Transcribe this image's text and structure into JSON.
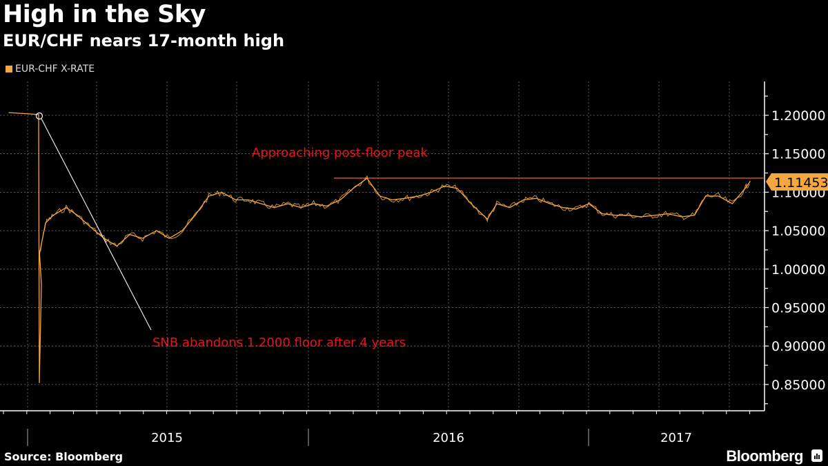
{
  "header": {
    "title": "High in the Sky",
    "subtitle": "EUR/CHF nears 17-month high"
  },
  "legend": {
    "label": "EUR-CHF X-RATE",
    "color": "#f5a742"
  },
  "footer": {
    "source": "Source: Bloomberg",
    "brand": "Bloomberg"
  },
  "annotations": {
    "snb": "SNB abandons 1.2000 floor after 4 years",
    "peak": "Approaching post-floor peak"
  },
  "last_value": "1.11453",
  "chart_data": {
    "type": "line",
    "title": "High in the Sky",
    "subtitle": "EUR/CHF nears 17-month high",
    "xlabel": "",
    "ylabel": "",
    "series": [
      {
        "name": "EUR-CHF X-RATE",
        "color": "#f5a742",
        "x": [
          "2014-12-15",
          "2015-01-14",
          "2015-01-15",
          "2015-01-16",
          "2015-01-20",
          "2015-01-27",
          "2015-02-05",
          "2015-02-20",
          "2015-03-05",
          "2015-03-20",
          "2015-04-05",
          "2015-04-20",
          "2015-05-05",
          "2015-05-20",
          "2015-06-05",
          "2015-06-20",
          "2015-07-05",
          "2015-07-20",
          "2015-08-05",
          "2015-08-20",
          "2015-09-05",
          "2015-09-20",
          "2015-10-05",
          "2015-10-20",
          "2015-11-05",
          "2015-11-20",
          "2015-12-05",
          "2015-12-20",
          "2016-01-05",
          "2016-01-20",
          "2016-02-05",
          "2016-02-20",
          "2016-03-05",
          "2016-03-20",
          "2016-04-05",
          "2016-04-20",
          "2016-05-05",
          "2016-05-20",
          "2016-06-05",
          "2016-06-24",
          "2016-07-05",
          "2016-07-20",
          "2016-08-05",
          "2016-08-20",
          "2016-09-05",
          "2016-09-20",
          "2016-10-05",
          "2016-10-20",
          "2016-11-05",
          "2016-11-20",
          "2016-12-05",
          "2016-12-20",
          "2017-01-05",
          "2017-01-20",
          "2017-02-05",
          "2017-02-20",
          "2017-03-05",
          "2017-03-20",
          "2017-04-05",
          "2017-04-20",
          "2017-04-26"
        ],
        "values": [
          1.2035,
          1.201,
          0.852,
          0.98,
          1.02,
          1.06,
          1.07,
          1.08,
          1.07,
          1.055,
          1.04,
          1.03,
          1.045,
          1.04,
          1.05,
          1.04,
          1.05,
          1.07,
          1.095,
          1.1,
          1.09,
          1.09,
          1.085,
          1.08,
          1.085,
          1.08,
          1.085,
          1.082,
          1.09,
          1.105,
          1.118,
          1.095,
          1.09,
          1.092,
          1.095,
          1.1,
          1.108,
          1.105,
          1.085,
          1.065,
          1.085,
          1.08,
          1.09,
          1.092,
          1.085,
          1.08,
          1.078,
          1.085,
          1.072,
          1.07,
          1.07,
          1.068,
          1.07,
          1.072,
          1.068,
          1.07,
          1.095,
          1.095,
          1.085,
          1.105,
          1.1145
        ]
      }
    ],
    "x_tick_labels": [
      "2015",
      "2016",
      "2017"
    ],
    "y_tick_labels": [
      "1.20000",
      "1.15000",
      "1.10000",
      "1.05000",
      "1.00000",
      "0.95000",
      "0.90000",
      "0.85000"
    ],
    "ylim": [
      0.83,
      1.24
    ],
    "grid": true,
    "legend_position": "top-left",
    "reference_line": {
      "value": 1.118,
      "label": "Approaching post-floor peak",
      "color": "#f0642d"
    },
    "last_value_label": "1.11453",
    "annotations": [
      {
        "text": "SNB abandons 1.2000 floor after 4 years",
        "x": "2015-01-15",
        "y": 1.2
      },
      {
        "text": "Approaching post-floor peak",
        "y": 1.118
      }
    ]
  }
}
